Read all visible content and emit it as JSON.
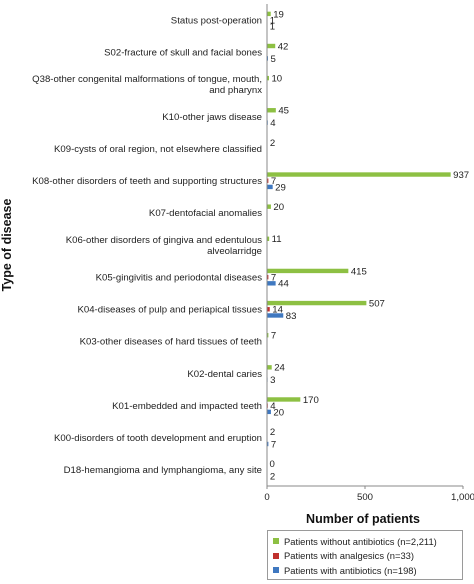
{
  "chart_data": {
    "type": "bar",
    "orientation": "horizontal",
    "xlabel": "Number of patients",
    "ylabel": "Type of disease",
    "xlim": [
      0,
      1000
    ],
    "xticks": [
      "0",
      "500",
      "1,000"
    ],
    "grid": false,
    "legend_position": "bottom-right",
    "categories": [
      [
        "Status post-operation"
      ],
      [
        "S02-fracture of skull and facial bones"
      ],
      [
        "Q38-other congenital malformations of tongue, mouth,",
        "and pharynx"
      ],
      [
        "K10-other jaws disease"
      ],
      [
        "K09-cysts of oral region, not elsewhere classified"
      ],
      [
        "K08-other disorders of teeth and supporting structures"
      ],
      [
        "K07-dentofacial anomalies"
      ],
      [
        "K06-other disorders of gingiva and edentulous",
        "alveolarridge"
      ],
      [
        "K05-gingivitis and periodontal diseases"
      ],
      [
        "K04-diseases of pulp and periapical tissues"
      ],
      [
        "K03-other diseases of hard tissues of teeth"
      ],
      [
        "K02-dental caries"
      ],
      [
        "K01-embedded and impacted teeth"
      ],
      [
        "K00-disorders of tooth development and eruption"
      ],
      [
        "D18-hemangioma and lymphangioma, any site"
      ]
    ],
    "series": [
      {
        "name": "Patients without antibiotics (n=2,211)",
        "color": "#8dc043",
        "values": [
          19,
          42,
          10,
          45,
          2,
          937,
          20,
          11,
          415,
          507,
          7,
          24,
          170,
          2,
          0
        ]
      },
      {
        "name": "Patients with analgesics (n=33)",
        "color": "#c0302e",
        "values": [
          1,
          null,
          null,
          null,
          null,
          7,
          null,
          null,
          7,
          14,
          null,
          null,
          4,
          null,
          null
        ]
      },
      {
        "name": "Patients with antibiotics (n=198)",
        "color": "#3f78c0",
        "values": [
          1,
          5,
          null,
          4,
          null,
          29,
          null,
          null,
          44,
          83,
          null,
          3,
          20,
          7,
          2
        ]
      }
    ]
  }
}
